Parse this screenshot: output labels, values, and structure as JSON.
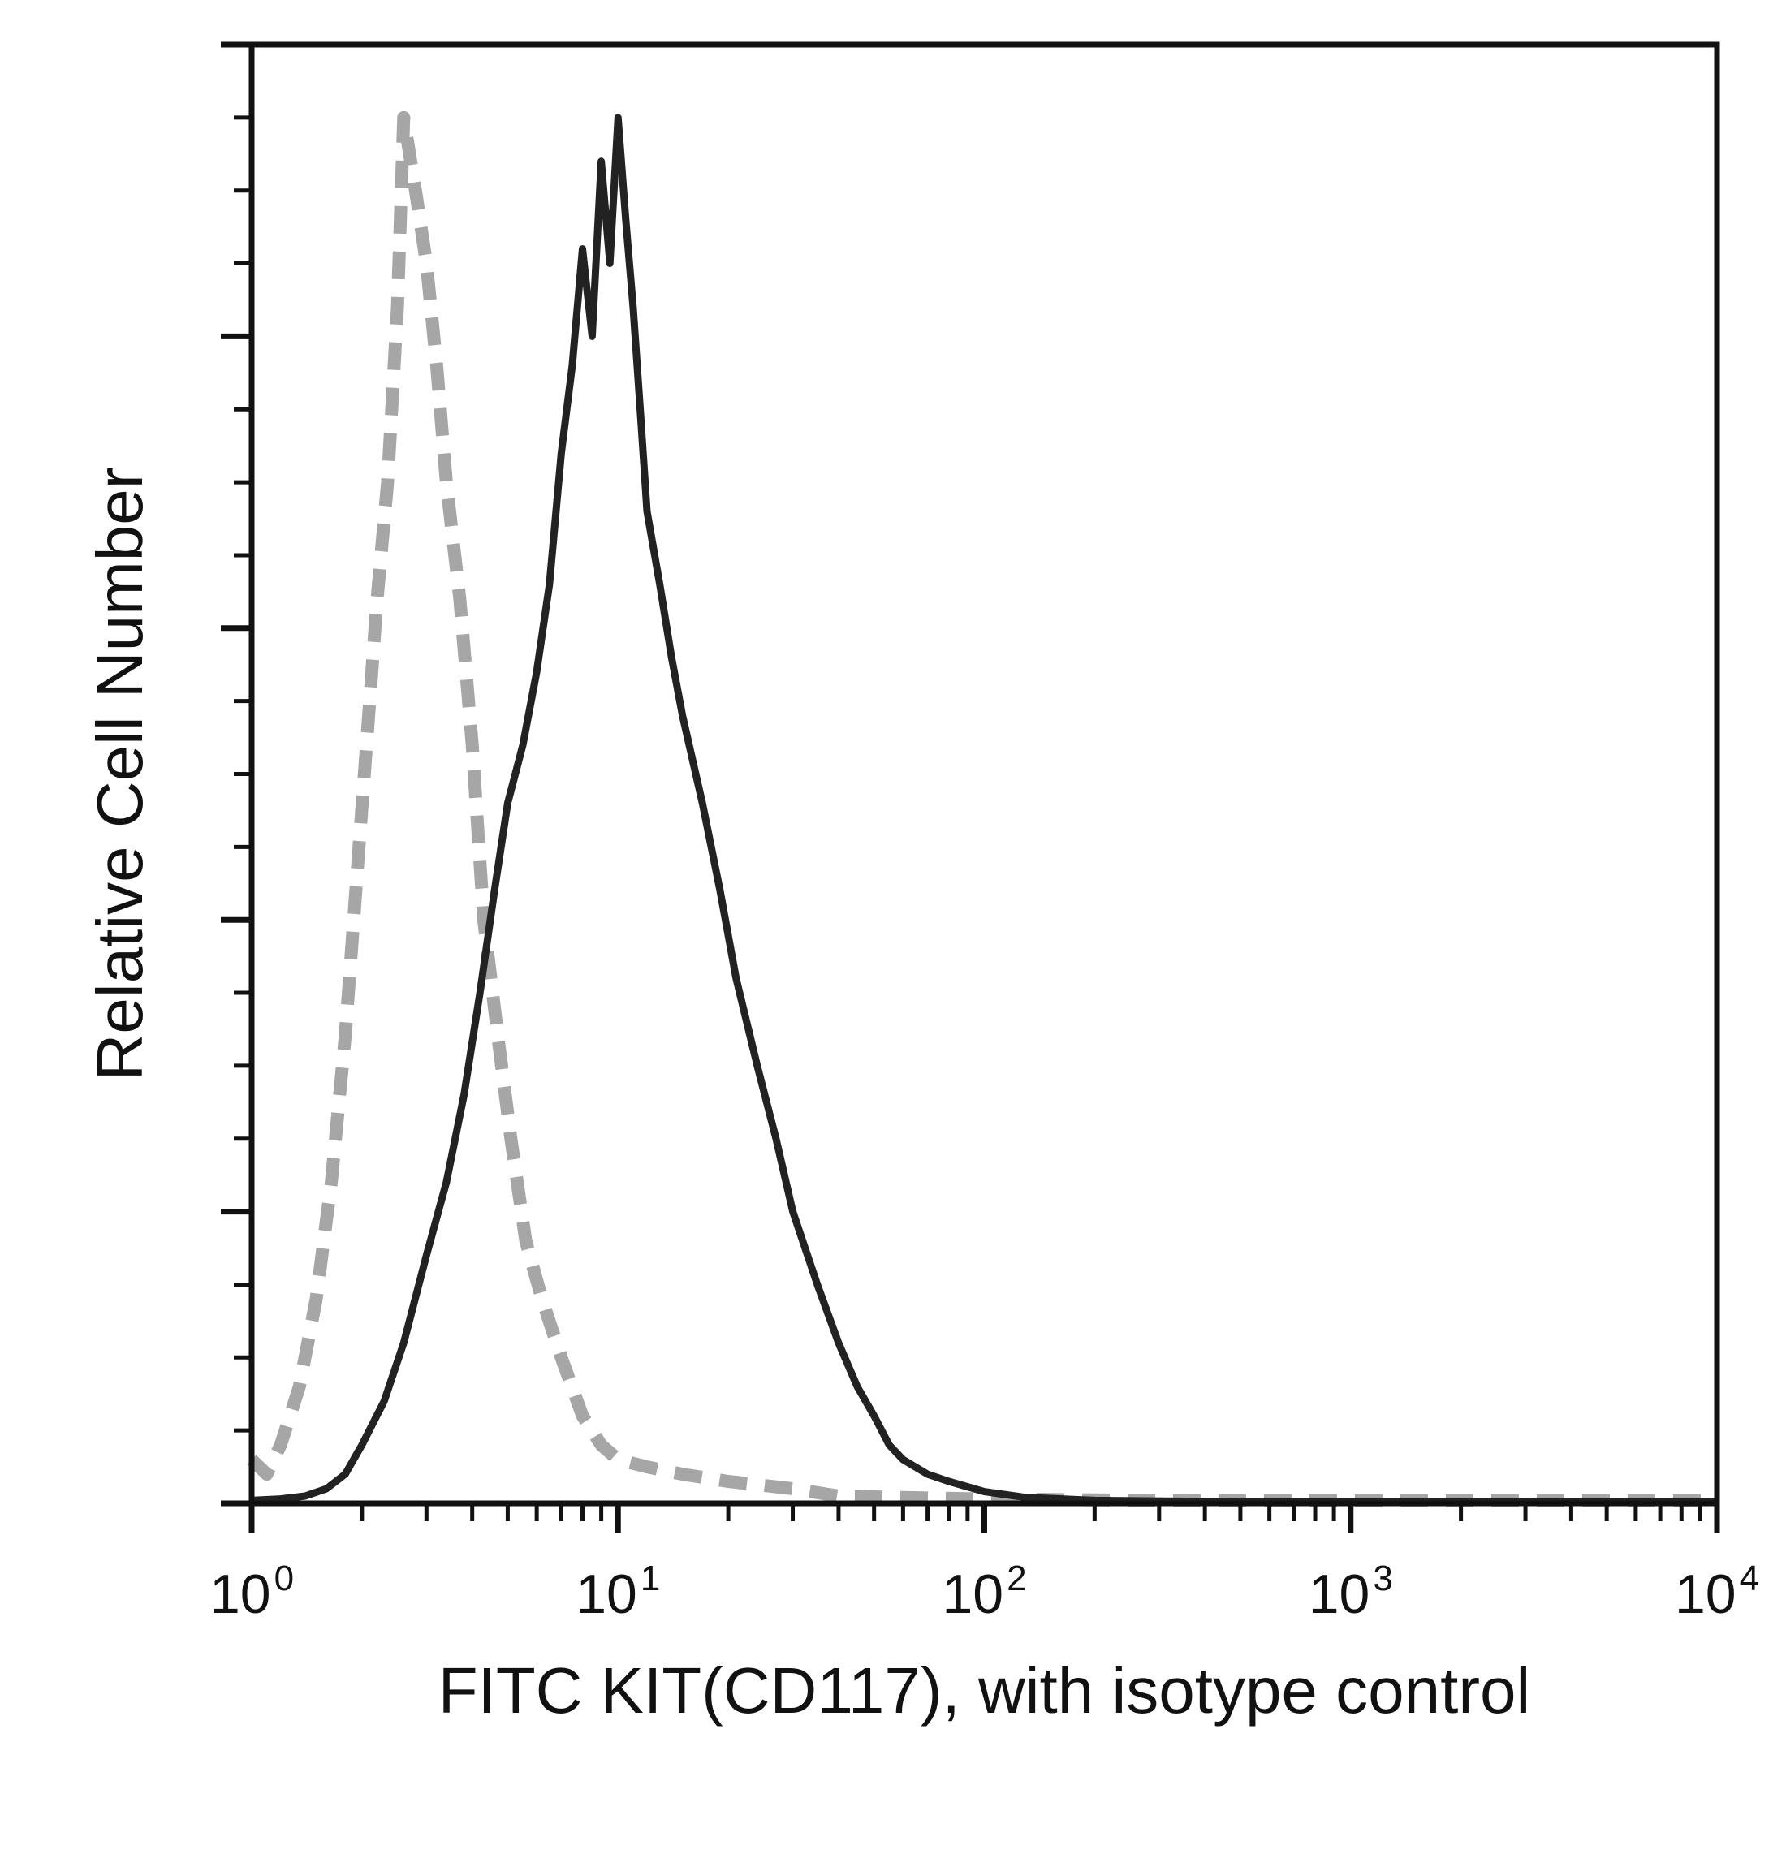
{
  "chart_data": {
    "type": "line",
    "title": "",
    "xlabel": "FITC KIT(CD117), with isotype control",
    "ylabel": "Relative Cell Number",
    "x_scale": "log",
    "xlim": [
      1,
      10000
    ],
    "ylim": [
      0,
      100
    ],
    "grid": false,
    "legend": "none",
    "x_ticks": [
      {
        "value": 1,
        "base": "10",
        "exp": "0"
      },
      {
        "value": 10,
        "base": "10",
        "exp": "1"
      },
      {
        "value": 100,
        "base": "10",
        "exp": "2"
      },
      {
        "value": 1000,
        "base": "10",
        "exp": "3"
      },
      {
        "value": 10000,
        "base": "10",
        "exp": "4"
      }
    ],
    "series": [
      {
        "style": "dashed",
        "color": "#a6a6a6",
        "x": [
          1.0,
          1.1,
          1.2,
          1.35,
          1.5,
          1.65,
          1.8,
          1.95,
          2.1,
          2.2,
          2.35,
          2.5,
          2.6,
          2.8,
          3.0,
          3.2,
          3.4,
          3.7,
          4.0,
          4.3,
          4.7,
          5.1,
          5.6,
          6.2,
          7.0,
          8.0,
          9.0,
          10.0,
          12.0,
          15.0,
          20.0,
          30.0,
          40.0,
          60.0,
          100.0,
          300.0,
          1000.0,
          10000.0
        ],
        "y": [
          3,
          2,
          4,
          8,
          14,
          22,
          32,
          44,
          55,
          62,
          70,
          82,
          95,
          90,
          85,
          78,
          70,
          62,
          52,
          40,
          32,
          25,
          18,
          14,
          10,
          6,
          4,
          3,
          2.5,
          2,
          1.5,
          1,
          0.5,
          0.4,
          0.3,
          0.2,
          0.2,
          0.2
        ]
      },
      {
        "style": "solid",
        "color": "#222222",
        "x": [
          1.0,
          1.2,
          1.4,
          1.6,
          1.8,
          2.0,
          2.3,
          2.6,
          3.0,
          3.4,
          3.8,
          4.2,
          4.6,
          5.0,
          5.5,
          6.0,
          6.5,
          7.0,
          7.5,
          8.0,
          8.5,
          9.0,
          9.5,
          10.0,
          10.5,
          11.0,
          11.5,
          12.0,
          13.0,
          14.0,
          15.0,
          17.0,
          19.0,
          21.0,
          24.0,
          27.0,
          30.0,
          35.0,
          40.0,
          45.0,
          50.0,
          55.0,
          60.0,
          70.0,
          80.0,
          100.0,
          130.0,
          200.0,
          500.0,
          10000.0
        ],
        "y": [
          0.2,
          0.3,
          0.5,
          1,
          2,
          4,
          7,
          11,
          17,
          22,
          28,
          35,
          42,
          48,
          52,
          57,
          63,
          72,
          78,
          86,
          80,
          92,
          85,
          95,
          88,
          82,
          75,
          68,
          63,
          58,
          54,
          48,
          42,
          36,
          30,
          25,
          20,
          15,
          11,
          8,
          6,
          4,
          3,
          2,
          1.5,
          0.8,
          0.4,
          0.2,
          0.1,
          0.1
        ]
      }
    ]
  }
}
